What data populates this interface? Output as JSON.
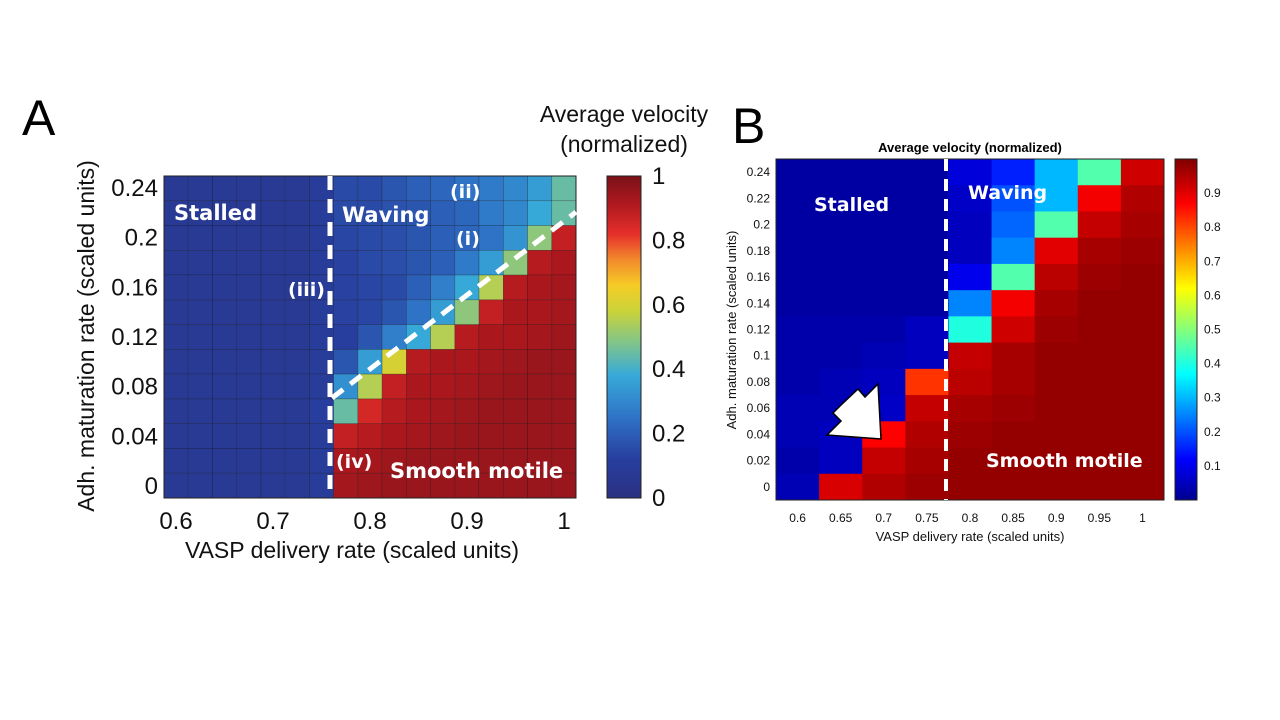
{
  "chart_data": [
    {
      "panel": "A",
      "type": "heatmap",
      "colorbar_title": [
        "Average velocity",
        "(normalized)"
      ],
      "xlabel": "VASP delivery rate (scaled units)",
      "ylabel": "Adh. maturation rate (scaled units)",
      "x_tick_labels": [
        "0.6",
        "0.7",
        "0.8",
        "0.9",
        "1"
      ],
      "y_tick_labels": [
        "0",
        "0.04",
        "0.08",
        "0.12",
        "0.16",
        "0.2",
        "0.24"
      ],
      "colorbar_tick_labels": [
        "0",
        "0.2",
        "0.4",
        "0.6",
        "0.8",
        "1"
      ],
      "xlim": [
        0.6,
        1.0
      ],
      "ylim": [
        0,
        0.24
      ],
      "clim": [
        0,
        1
      ],
      "colormap": "parula-like blue to red",
      "grid_size": [
        17,
        13
      ],
      "row_order": "top to bottom (0.24 to 0)",
      "values": [
        [
          0.08,
          0.08,
          0.08,
          0.08,
          0.08,
          0.08,
          0.1,
          0.15,
          0.15,
          0.18,
          0.2,
          0.22,
          0.25,
          0.27,
          0.3,
          0.35,
          0.45
        ],
        [
          0.08,
          0.08,
          0.08,
          0.08,
          0.08,
          0.08,
          0.1,
          0.15,
          0.15,
          0.17,
          0.18,
          0.2,
          0.22,
          0.27,
          0.3,
          0.38,
          0.45
        ],
        [
          0.08,
          0.08,
          0.08,
          0.08,
          0.08,
          0.08,
          0.1,
          0.14,
          0.15,
          0.16,
          0.18,
          0.2,
          0.22,
          0.25,
          0.33,
          0.5,
          0.88
        ],
        [
          0.08,
          0.08,
          0.08,
          0.08,
          0.08,
          0.08,
          0.1,
          0.13,
          0.15,
          0.16,
          0.18,
          0.2,
          0.27,
          0.35,
          0.5,
          0.9,
          0.92
        ],
        [
          0.08,
          0.08,
          0.08,
          0.08,
          0.08,
          0.08,
          0.1,
          0.13,
          0.14,
          0.15,
          0.2,
          0.28,
          0.38,
          0.55,
          0.9,
          0.92,
          0.93
        ],
        [
          0.08,
          0.08,
          0.08,
          0.08,
          0.08,
          0.08,
          0.1,
          0.13,
          0.14,
          0.18,
          0.25,
          0.35,
          0.5,
          0.88,
          0.92,
          0.92,
          0.93
        ],
        [
          0.08,
          0.08,
          0.08,
          0.08,
          0.08,
          0.08,
          0.1,
          0.12,
          0.18,
          0.28,
          0.38,
          0.55,
          0.9,
          0.92,
          0.92,
          0.93,
          0.94
        ],
        [
          0.08,
          0.08,
          0.08,
          0.08,
          0.08,
          0.08,
          0.1,
          0.18,
          0.35,
          0.6,
          0.9,
          0.92,
          0.92,
          0.93,
          0.94,
          0.95,
          0.95
        ],
        [
          0.08,
          0.08,
          0.08,
          0.08,
          0.08,
          0.08,
          0.1,
          0.32,
          0.55,
          0.88,
          0.92,
          0.92,
          0.93,
          0.94,
          0.95,
          0.95,
          0.95
        ],
        [
          0.08,
          0.08,
          0.08,
          0.08,
          0.08,
          0.08,
          0.12,
          0.45,
          0.85,
          0.9,
          0.92,
          0.93,
          0.94,
          0.95,
          0.95,
          0.95,
          0.95
        ],
        [
          0.08,
          0.08,
          0.08,
          0.08,
          0.08,
          0.08,
          0.1,
          0.88,
          0.9,
          0.92,
          0.93,
          0.94,
          0.95,
          0.95,
          0.95,
          0.95,
          0.95
        ],
        [
          0.08,
          0.08,
          0.08,
          0.08,
          0.08,
          0.08,
          0.1,
          0.92,
          0.93,
          0.94,
          0.95,
          0.95,
          0.95,
          0.95,
          0.95,
          0.95,
          0.95
        ],
        [
          0.08,
          0.08,
          0.08,
          0.08,
          0.08,
          0.08,
          0.1,
          0.93,
          0.94,
          0.95,
          0.95,
          0.95,
          0.95,
          0.95,
          0.95,
          0.95,
          0.95
        ]
      ],
      "region_labels": [
        "Stalled",
        "Waving",
        "Smooth motile"
      ],
      "point_labels": [
        "(i)",
        "(ii)",
        "(iii)",
        "(iv)"
      ]
    },
    {
      "panel": "B",
      "type": "heatmap",
      "title": "Average velocity (normalized)",
      "xlabel": "VASP delivery rate (scaled units)",
      "ylabel": "Adh. maturation rate (scaled units)",
      "x_tick_labels": [
        "0.6",
        "0.65",
        "0.7",
        "0.75",
        "0.8",
        "0.85",
        "0.9",
        "0.95",
        "1"
      ],
      "y_tick_labels": [
        "0",
        "0.02",
        "0.04",
        "0.06",
        "0.08",
        "0.1",
        "0.12",
        "0.14",
        "0.16",
        "0.18",
        "0.2",
        "0.22",
        "0.24"
      ],
      "colorbar_tick_labels": [
        "0.1",
        "0.2",
        "0.3",
        "0.4",
        "0.5",
        "0.6",
        "0.7",
        "0.8",
        "0.9"
      ],
      "clim": [
        0,
        1
      ],
      "colormap": "jet",
      "grid_size": [
        9,
        13
      ],
      "row_order": "top to bottom (0.24 to 0)",
      "values": [
        [
          0.02,
          0.02,
          0.02,
          0.02,
          0.08,
          0.15,
          0.3,
          0.45,
          0.92
        ],
        [
          0.02,
          0.02,
          0.02,
          0.02,
          0.06,
          0.2,
          0.3,
          0.88,
          0.95
        ],
        [
          0.02,
          0.02,
          0.02,
          0.02,
          0.05,
          0.22,
          0.45,
          0.93,
          0.96
        ],
        [
          0.02,
          0.02,
          0.02,
          0.02,
          0.05,
          0.25,
          0.9,
          0.96,
          0.97
        ],
        [
          0.02,
          0.02,
          0.02,
          0.02,
          0.1,
          0.45,
          0.94,
          0.97,
          0.98
        ],
        [
          0.02,
          0.02,
          0.02,
          0.02,
          0.25,
          0.88,
          0.96,
          0.98,
          0.98
        ],
        [
          0.03,
          0.03,
          0.03,
          0.05,
          0.4,
          0.92,
          0.97,
          0.98,
          0.98
        ],
        [
          0.03,
          0.03,
          0.04,
          0.05,
          0.93,
          0.96,
          0.98,
          0.98,
          0.98
        ],
        [
          0.03,
          0.04,
          0.05,
          0.82,
          0.94,
          0.96,
          0.98,
          0.98,
          0.98
        ],
        [
          0.04,
          0.04,
          0.06,
          0.93,
          0.96,
          0.97,
          0.98,
          0.98,
          0.98
        ],
        [
          0.04,
          0.05,
          0.87,
          0.95,
          0.97,
          0.98,
          0.98,
          0.98,
          0.98
        ],
        [
          0.03,
          0.05,
          0.93,
          0.96,
          0.98,
          0.98,
          0.98,
          0.98,
          0.98
        ],
        [
          0.04,
          0.91,
          0.95,
          0.97,
          0.98,
          0.98,
          0.98,
          0.98,
          0.98
        ]
      ],
      "region_labels": [
        "Stalled",
        "Waving",
        "Smooth motile"
      ]
    }
  ],
  "labels": {
    "panel_a": "A",
    "panel_b": "B"
  }
}
